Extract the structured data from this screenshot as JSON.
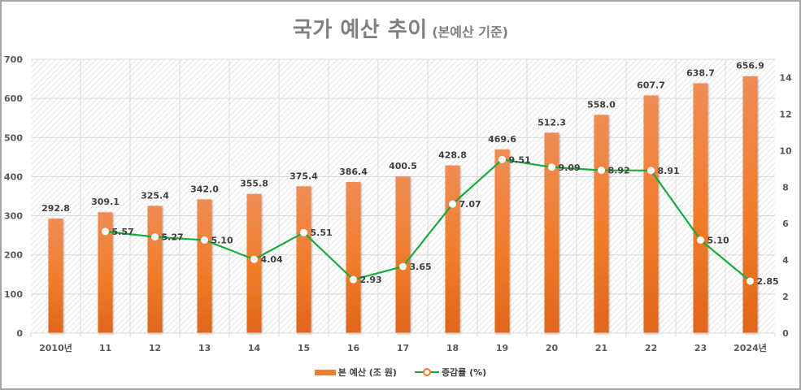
{
  "chart_data": {
    "type": "bar+line",
    "title": "국가 예산 추이",
    "subtitle": "(본예산 기준)",
    "categories": [
      "2010년",
      "11",
      "12",
      "13",
      "14",
      "15",
      "16",
      "17",
      "18",
      "19",
      "20",
      "21",
      "22",
      "23",
      "2024년"
    ],
    "series": [
      {
        "name": "본 예산 (조 원)",
        "type": "bar",
        "axis": "left",
        "values": [
          292.8,
          309.1,
          325.4,
          342.0,
          355.8,
          375.4,
          386.4,
          400.5,
          428.8,
          469.6,
          512.3,
          558.0,
          607.7,
          638.7,
          656.9
        ],
        "labels": [
          "292.8",
          "309.1",
          "325.4",
          "342.0",
          "355.8",
          "375.4",
          "386.4",
          "400.5",
          "428.8",
          "469.6",
          "512.3",
          "558.0",
          "607.7",
          "638.7",
          "656.9"
        ],
        "color": "#ed7d31"
      },
      {
        "name": "증감률 (%)",
        "type": "line",
        "axis": "right",
        "values": [
          null,
          5.57,
          5.27,
          5.1,
          4.04,
          5.51,
          2.93,
          3.65,
          7.07,
          9.51,
          9.09,
          8.92,
          8.91,
          5.1,
          2.85
        ],
        "labels": [
          null,
          "5.57",
          "5.27",
          "5.10",
          "4.04",
          "5.51",
          "2.93",
          "3.65",
          "7.07",
          "9.51",
          "9.09",
          "8.92",
          "8.91",
          "5.10",
          "2.85"
        ],
        "color": "#1aab40",
        "marker_color": "#ffffff",
        "legend_marker_border": "#ed7d31"
      }
    ],
    "y_left": {
      "ylim": [
        0,
        700
      ],
      "ticks": [
        "0",
        "100",
        "200",
        "300",
        "400",
        "500",
        "600",
        "700"
      ],
      "tick_values": [
        0,
        100,
        200,
        300,
        400,
        500,
        600,
        700
      ]
    },
    "y_right": {
      "ylim": [
        0,
        15
      ],
      "ticks": [
        "0",
        "2",
        "4",
        "6",
        "8",
        "10",
        "12",
        "14"
      ],
      "tick_values": [
        0,
        2,
        4,
        6,
        8,
        10,
        12,
        14
      ]
    },
    "grid": true,
    "legend": "bottom",
    "colors": {
      "title": "#7f7f7f",
      "grid": "#d9d9d9",
      "hatch": "#d0d0d0",
      "text": "#404040"
    }
  }
}
